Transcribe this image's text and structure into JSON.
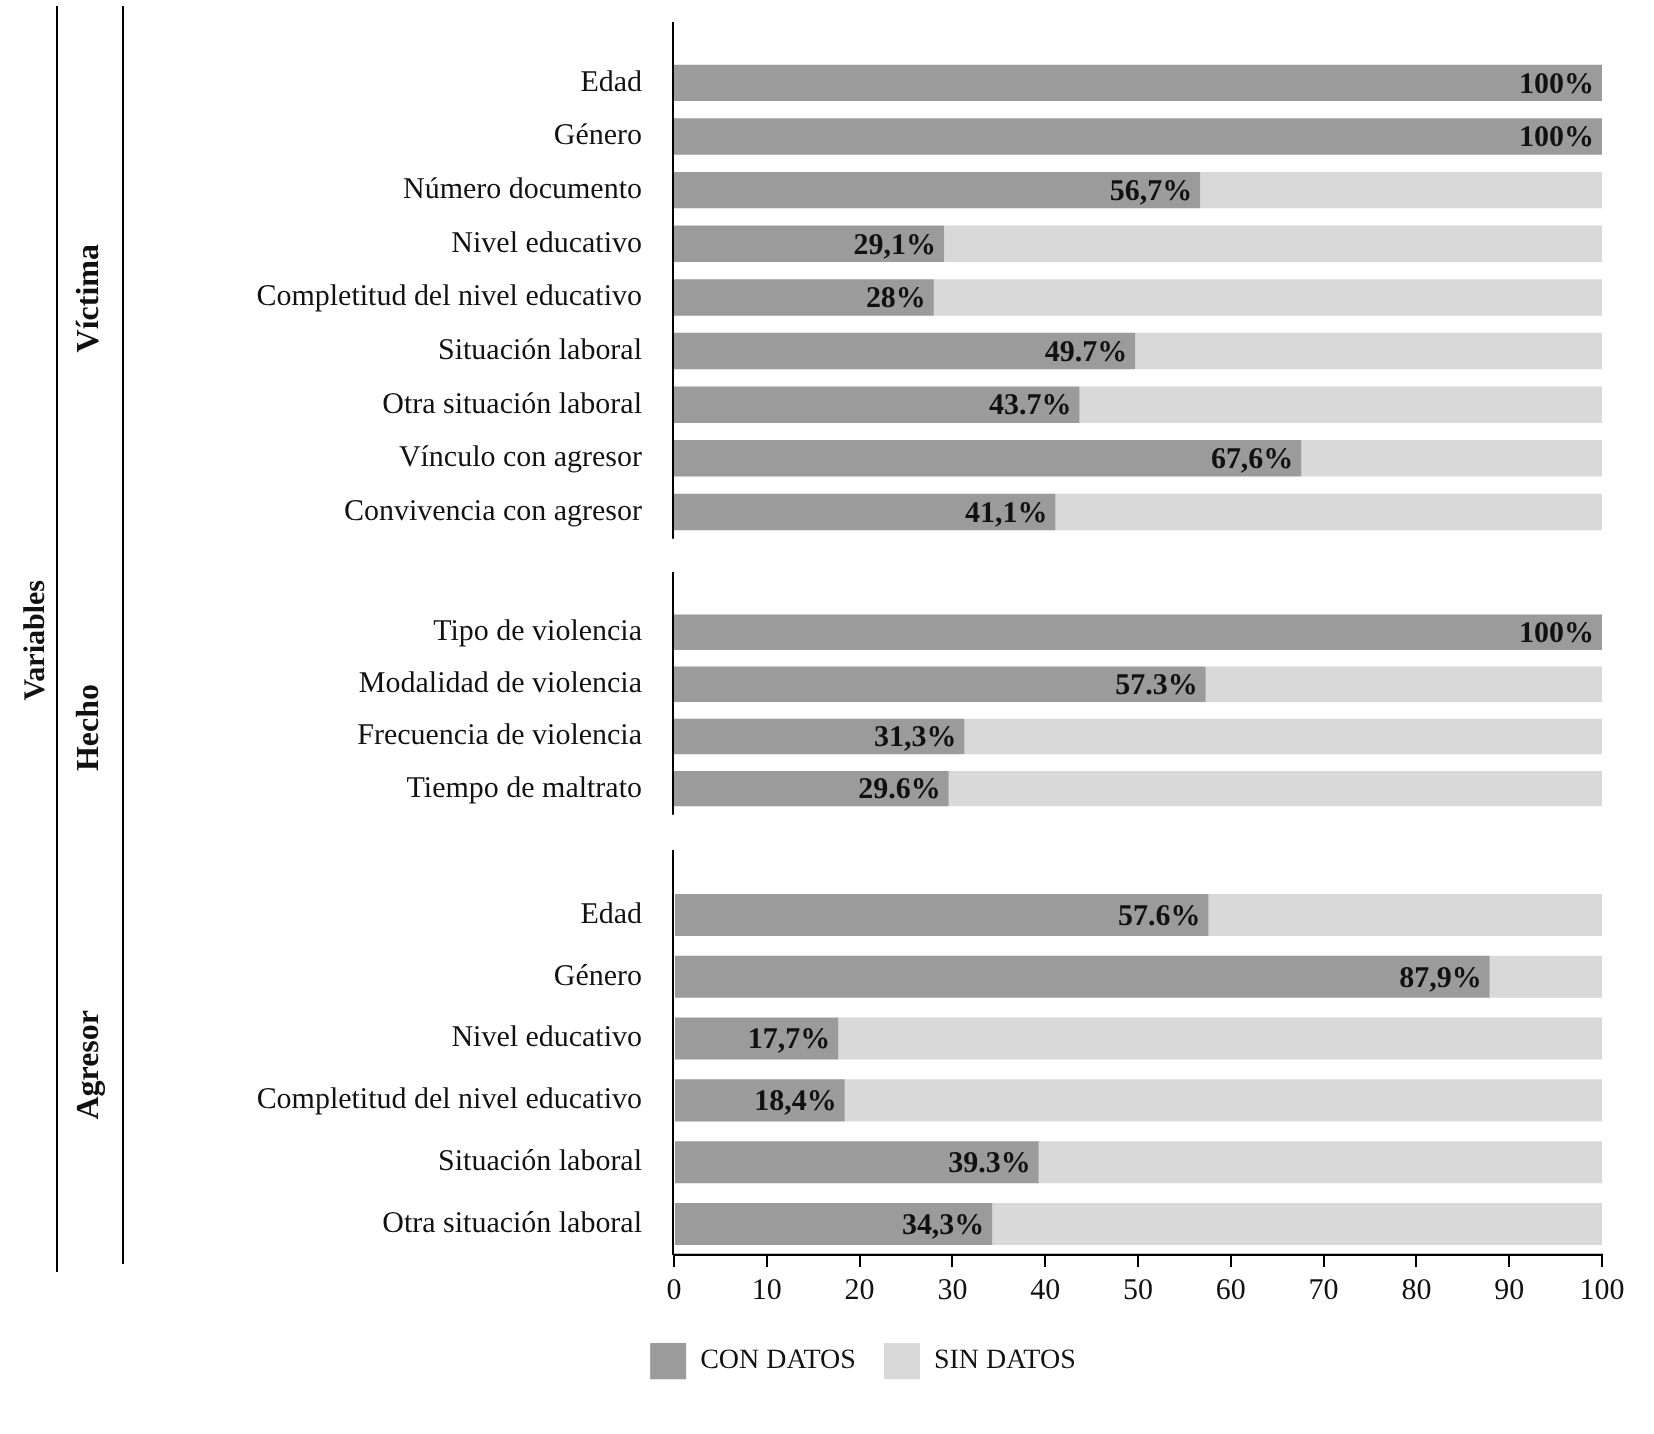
{
  "chart_data": [
    {
      "type": "bar",
      "orientation": "horizontal",
      "stacked": true,
      "ylabel": "Víctima",
      "annotations": [
        "Variables"
      ],
      "categories": [
        "Edad",
        "Género",
        "Número documento",
        "Nivel educativo",
        "Completitud del nivel educativo",
        "Situación laboral",
        "Otra situación laboral",
        "Vínculo con agresor",
        "Convivencia con agresor"
      ],
      "series": [
        {
          "color": "#9b9b9b",
          "values": [
            100,
            100,
            56.7,
            29.1,
            28,
            49.7,
            43.7,
            67.6,
            41.1
          ],
          "value_labels": [
            "100%",
            "100%",
            "56,7%",
            "29,1%",
            "28%",
            "49.7%",
            "43.7%",
            "67,6%",
            "41,1%"
          ]
        },
        {
          "color": "#d9d9d9",
          "values": [
            0,
            0,
            43.3,
            70.9,
            72,
            50.3,
            56.3,
            32.4,
            58.9
          ]
        }
      ],
      "xlim": [
        0,
        100
      ],
      "tick_labels": "y",
      "legend": false
    },
    {
      "type": "bar",
      "orientation": "horizontal",
      "stacked": true,
      "ylabel": "Hecho",
      "categories": [
        "Tipo de violencia",
        "Modalidad de violencia",
        "Frecuencia de violencia",
        "Tiempo de maltrato"
      ],
      "series": [
        {
          "color": "#9b9b9b",
          "values": [
            100,
            57.3,
            31.3,
            29.6
          ],
          "value_labels": [
            "100%",
            "57.3%",
            "31,3%",
            "29.6%"
          ]
        },
        {
          "color": "#d9d9d9",
          "values": [
            0,
            42.7,
            68.7,
            70.4
          ]
        }
      ],
      "xlim": [
        0,
        100
      ],
      "tick_labels": "y",
      "legend": false
    },
    {
      "type": "bar",
      "orientation": "horizontal",
      "stacked": true,
      "ylabel": "Agresor",
      "categories": [
        "Edad",
        "Género",
        "Nivel educativo",
        "Completitud del nivel educativo",
        "Situación laboral",
        "Otra situación laboral"
      ],
      "series": [
        {
          "name": "CON DATOS",
          "color": "#9b9b9b",
          "values": [
            57.6,
            87.9,
            17.7,
            18.4,
            39.3,
            34.3
          ],
          "value_labels": [
            "57.6%",
            "87,9%",
            "17,7%",
            "18,4%",
            "39.3%",
            "34,3%"
          ]
        },
        {
          "name": "SIN DATOS",
          "color": "#d9d9d9",
          "values": [
            42.4,
            12.1,
            82.3,
            81.6,
            60.7,
            65.7
          ]
        }
      ],
      "xlim": [
        0,
        100
      ],
      "xticks": [
        0,
        10,
        20,
        30,
        40,
        50,
        60,
        70,
        80,
        90,
        100
      ],
      "legend": "bottom"
    }
  ]
}
